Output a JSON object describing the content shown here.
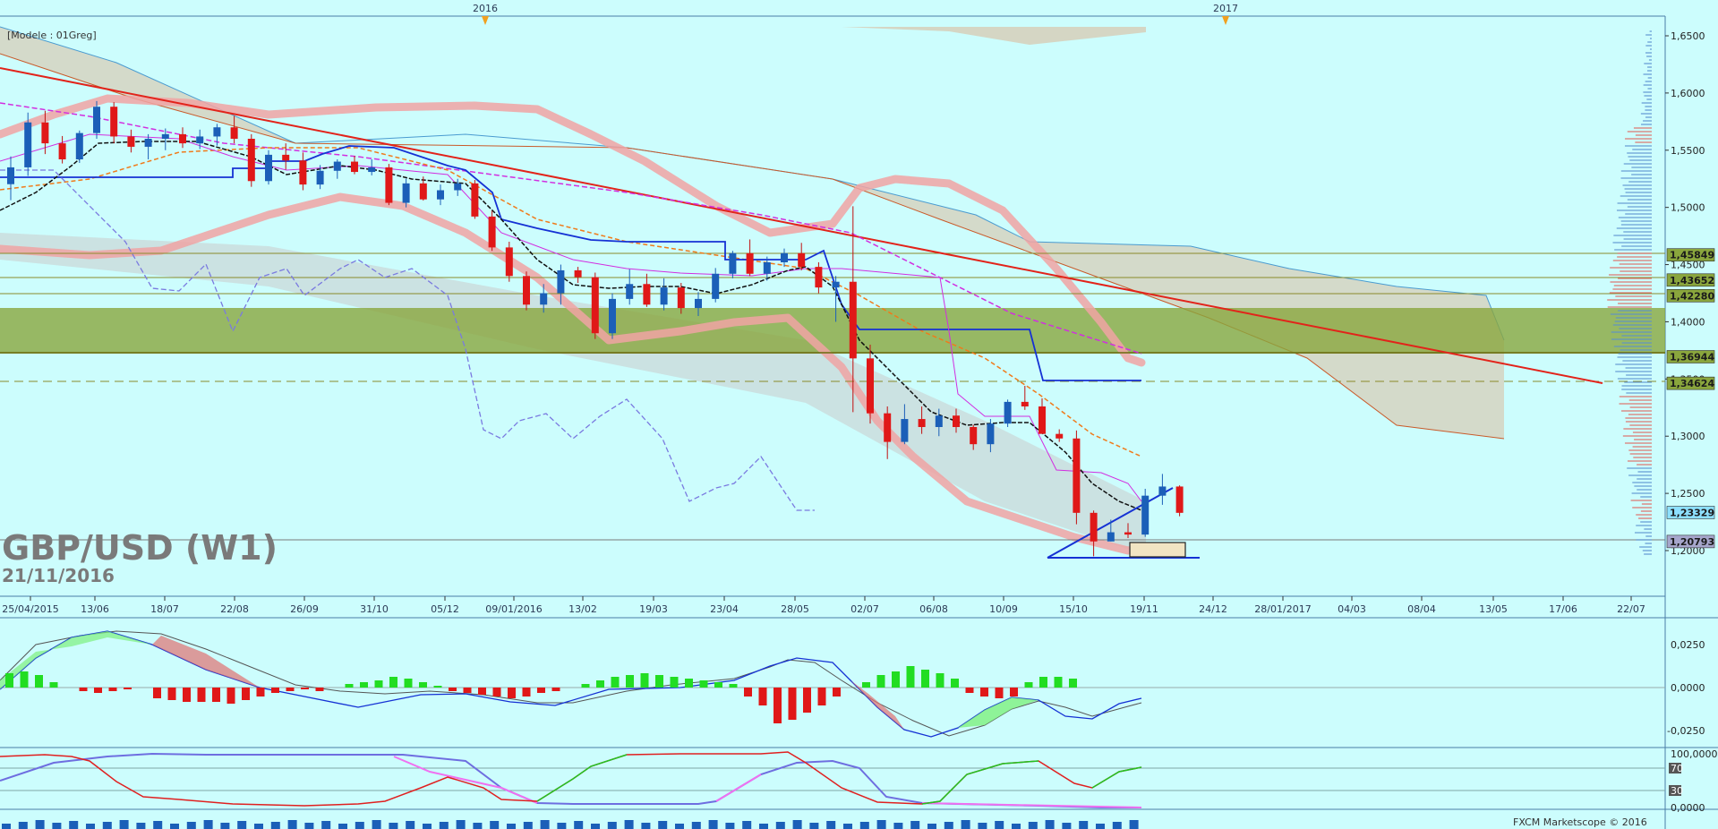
{
  "chart_data": {
    "type": "candlestick",
    "title": "GBP/USD (W1)",
    "subtitle": "21/11/2016",
    "template_label": "[Modele : 01Greg]",
    "footer": "FXCM Marketscope © 2016",
    "year_markers": [
      "2016",
      "2017"
    ],
    "x_ticks": [
      "25/04/2015",
      "13/06",
      "18/07",
      "22/08",
      "26/09",
      "31/10",
      "05/12",
      "09/01/2016",
      "13/02",
      "19/03",
      "23/04",
      "28/05",
      "02/07",
      "06/08",
      "10/09",
      "15/10",
      "19/11",
      "24/12",
      "28/01/2017",
      "04/03",
      "08/04",
      "13/05",
      "17/06",
      "22/07"
    ],
    "y_ticks": [
      "1,6500",
      "1,6000",
      "1,5500",
      "1,5000",
      "1,4500",
      "1,4000",
      "1,3500",
      "1,3000",
      "1,2500",
      "1,2000"
    ],
    "ylim": [
      1.18,
      1.655
    ],
    "price_levels": [
      {
        "label": "1,45849",
        "value": 1.45849
      },
      {
        "label": "1,43652",
        "value": 1.43652
      },
      {
        "label": "1,42280",
        "value": 1.4228
      },
      {
        "label": "1,36944",
        "value": 1.36944
      },
      {
        "label": "1,34624",
        "value": 1.34624
      },
      {
        "label": "1,23329",
        "value": 1.23329
      },
      {
        "label": "1,20793",
        "value": 1.20793
      }
    ],
    "candles": [
      [
        1.5203,
        1.5445,
        1.5063,
        1.535
      ],
      [
        1.535,
        1.5829,
        1.5275,
        1.5743
      ],
      [
        1.5743,
        1.5845,
        1.5466,
        1.556
      ],
      [
        1.556,
        1.5624,
        1.5384,
        1.542
      ],
      [
        1.542,
        1.5672,
        1.5389,
        1.565
      ],
      [
        1.565,
        1.593,
        1.56,
        1.588
      ],
      [
        1.588,
        1.592,
        1.556,
        1.562
      ],
      [
        1.562,
        1.568,
        1.548,
        1.553
      ],
      [
        1.553,
        1.564,
        1.542,
        1.56
      ],
      [
        1.56,
        1.569,
        1.55,
        1.564
      ],
      [
        1.564,
        1.57,
        1.552,
        1.556
      ],
      [
        1.556,
        1.568,
        1.551,
        1.562
      ],
      [
        1.562,
        1.573,
        1.554,
        1.57
      ],
      [
        1.57,
        1.58,
        1.556,
        1.56
      ],
      [
        1.56,
        1.564,
        1.518,
        1.523
      ],
      [
        1.523,
        1.55,
        1.52,
        1.546
      ],
      [
        1.546,
        1.556,
        1.533,
        1.541
      ],
      [
        1.541,
        1.548,
        1.515,
        1.52
      ],
      [
        1.52,
        1.537,
        1.516,
        1.532
      ],
      [
        1.532,
        1.542,
        1.525,
        1.54
      ],
      [
        1.54,
        1.545,
        1.529,
        1.531
      ],
      [
        1.531,
        1.542,
        1.528,
        1.535
      ],
      [
        1.535,
        1.538,
        1.502,
        1.504
      ],
      [
        1.504,
        1.525,
        1.5,
        1.521
      ],
      [
        1.521,
        1.527,
        1.506,
        1.507
      ],
      [
        1.507,
        1.52,
        1.502,
        1.515
      ],
      [
        1.515,
        1.525,
        1.51,
        1.521
      ],
      [
        1.521,
        1.524,
        1.49,
        1.492
      ],
      [
        1.492,
        1.497,
        1.462,
        1.465
      ],
      [
        1.465,
        1.47,
        1.435,
        1.44
      ],
      [
        1.44,
        1.444,
        1.41,
        1.415
      ],
      [
        1.415,
        1.433,
        1.408,
        1.425
      ],
      [
        1.425,
        1.45,
        1.415,
        1.445
      ],
      [
        1.445,
        1.448,
        1.434,
        1.439
      ],
      [
        1.439,
        1.443,
        1.385,
        1.39
      ],
      [
        1.39,
        1.425,
        1.385,
        1.42
      ],
      [
        1.42,
        1.446,
        1.415,
        1.433
      ],
      [
        1.433,
        1.442,
        1.413,
        1.415
      ],
      [
        1.415,
        1.438,
        1.41,
        1.43
      ],
      [
        1.43,
        1.434,
        1.407,
        1.412
      ],
      [
        1.412,
        1.426,
        1.405,
        1.42
      ],
      [
        1.42,
        1.447,
        1.417,
        1.442
      ],
      [
        1.442,
        1.462,
        1.438,
        1.46
      ],
      [
        1.46,
        1.472,
        1.44,
        1.442
      ],
      [
        1.442,
        1.457,
        1.436,
        1.452
      ],
      [
        1.452,
        1.464,
        1.448,
        1.46
      ],
      [
        1.46,
        1.469,
        1.445,
        1.448
      ],
      [
        1.448,
        1.452,
        1.425,
        1.43
      ],
      [
        1.43,
        1.44,
        1.4,
        1.435
      ],
      [
        1.435,
        1.501,
        1.321,
        1.368
      ],
      [
        1.368,
        1.38,
        1.311,
        1.32
      ],
      [
        1.32,
        1.326,
        1.28,
        1.295
      ],
      [
        1.295,
        1.328,
        1.293,
        1.315
      ],
      [
        1.315,
        1.326,
        1.302,
        1.308
      ],
      [
        1.308,
        1.324,
        1.3,
        1.318
      ],
      [
        1.318,
        1.324,
        1.303,
        1.308
      ],
      [
        1.308,
        1.31,
        1.288,
        1.293
      ],
      [
        1.293,
        1.315,
        1.286,
        1.311
      ],
      [
        1.311,
        1.332,
        1.308,
        1.33
      ],
      [
        1.33,
        1.344,
        1.323,
        1.326
      ],
      [
        1.326,
        1.333,
        1.305,
        1.302
      ],
      [
        1.302,
        1.306,
        1.295,
        1.298
      ],
      [
        1.298,
        1.305,
        1.223,
        1.233
      ],
      [
        1.233,
        1.235,
        1.195,
        1.208
      ],
      [
        1.208,
        1.227,
        1.208,
        1.216
      ],
      [
        1.216,
        1.224,
        1.211,
        1.214
      ],
      [
        1.214,
        1.254,
        1.212,
        1.248
      ],
      [
        1.248,
        1.267,
        1.24,
        1.256
      ],
      [
        1.256,
        1.257,
        1.23,
        1.233
      ]
    ],
    "macd_axis": [
      "0,0250",
      "0,0000",
      "-0,0250"
    ],
    "osc_axis": [
      "100,0000",
      "70",
      "30",
      "0,0000"
    ]
  }
}
